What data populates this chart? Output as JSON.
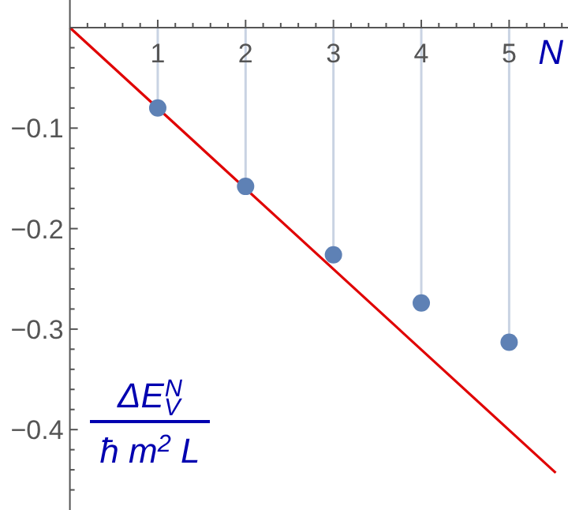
{
  "chart_data": {
    "type": "lollipop",
    "xlabel": "N",
    "ylabel": "ΔE$_{V}$$^{N}$ ħ m$^{2}$ L",
    "xlim": [
      0,
      5.67
    ],
    "ylim": [
      -0.48,
      0.0275
    ],
    "xticks": [
      {
        "value": 0.2,
        "label": null
      },
      {
        "value": 0.4,
        "label": null
      },
      {
        "value": 0.6,
        "label": null
      },
      {
        "value": 0.8,
        "label": null
      },
      1,
      {
        "value": 1.2,
        "label": null
      },
      {
        "value": 1.4,
        "label": null
      },
      {
        "value": 1.6,
        "label": null
      },
      {
        "value": 1.8,
        "label": null
      },
      2,
      {
        "value": 2.2,
        "label": null
      },
      {
        "value": 2.4,
        "label": null
      },
      {
        "value": 2.6,
        "label": null
      },
      {
        "value": 2.8,
        "label": null
      },
      3,
      {
        "value": 3.2,
        "label": null
      },
      {
        "value": 3.4,
        "label": null
      },
      {
        "value": 3.6,
        "label": null
      },
      {
        "value": 3.8,
        "label": null
      },
      4,
      {
        "value": 4.2,
        "label": null
      },
      {
        "value": 4.4,
        "label": null
      },
      {
        "value": 4.6,
        "label": null
      },
      {
        "value": 4.8,
        "label": null
      },
      5,
      {
        "value": 5.2,
        "label": null
      },
      {
        "value": 5.4,
        "label": null
      },
      {
        "value": 5.6,
        "label": null
      }
    ],
    "yticks": [
      {
        "value": -0.02,
        "label": null
      },
      {
        "value": -0.04,
        "label": null
      },
      {
        "value": -0.06,
        "label": null
      },
      {
        "value": -0.08,
        "label": null
      },
      {
        "value": -0.1,
        "label": "−0.1"
      },
      {
        "value": -0.12,
        "label": null
      },
      {
        "value": -0.14,
        "label": null
      },
      {
        "value": -0.16,
        "label": null
      },
      {
        "value": -0.18,
        "label": null
      },
      {
        "value": -0.2,
        "label": "−0.2"
      },
      {
        "value": -0.22,
        "label": null
      },
      {
        "value": -0.24,
        "label": null
      },
      {
        "value": -0.26,
        "label": null
      },
      {
        "value": -0.28,
        "label": null
      },
      {
        "value": -0.3,
        "label": "−0.3"
      },
      {
        "value": -0.32,
        "label": null
      },
      {
        "value": -0.34,
        "label": null
      },
      {
        "value": -0.36,
        "label": null
      },
      {
        "value": -0.38,
        "label": null
      },
      {
        "value": -0.4,
        "label": "−0.4"
      },
      {
        "value": -0.42,
        "label": null
      },
      {
        "value": -0.44,
        "label": null
      },
      {
        "value": -0.46,
        "label": null
      }
    ],
    "grid": false,
    "series": [
      {
        "type": "line",
        "color": "#e00000",
        "x": [
          0,
          5.53
        ],
        "values": [
          0,
          -0.443
        ],
        "marker": "none",
        "line_style": "solid"
      },
      {
        "color": "#5e81b5",
        "x": [
          1,
          2,
          3,
          4,
          5
        ],
        "values": [
          -0.08,
          -0.158,
          -0.226,
          -0.274,
          -0.313
        ],
        "marker": "circle"
      }
    ]
  }
}
